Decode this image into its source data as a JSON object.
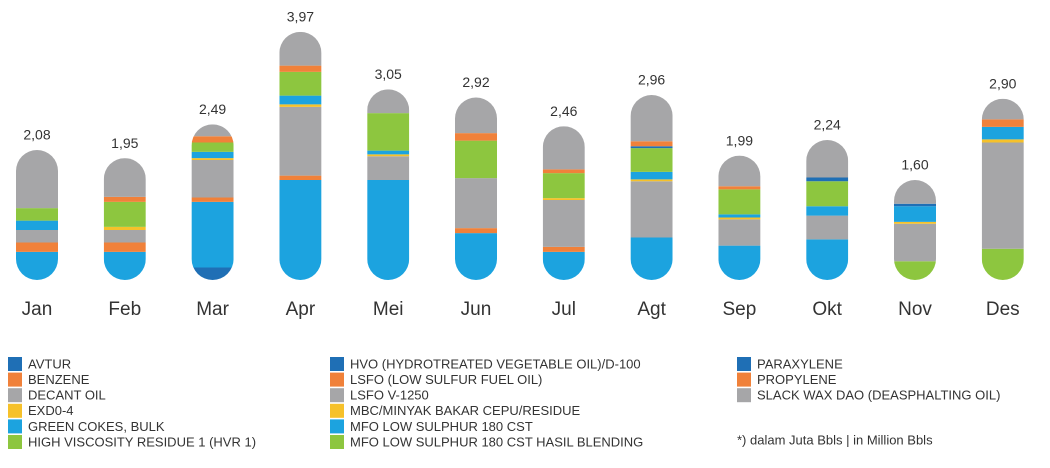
{
  "chart_data": {
    "type": "stacked_bar",
    "categories": [
      "Jan",
      "Feb",
      "Mar",
      "Apr",
      "Mei",
      "Jun",
      "Jul",
      "Agt",
      "Sep",
      "Okt",
      "Nov",
      "Des"
    ],
    "totals": [
      2.08,
      1.95,
      2.49,
      3.97,
      3.05,
      2.92,
      2.46,
      2.96,
      1.99,
      2.24,
      1.6,
      2.9
    ],
    "total_labels": [
      "2,08",
      "1,95",
      "2,49",
      "3,97",
      "3,05",
      "2,92",
      "2,46",
      "2,96",
      "1,99",
      "2,24",
      "1,60",
      "2,90"
    ],
    "series": [
      {
        "name": "AVTUR",
        "color": "#1f6fb5",
        "values": [
          0,
          0,
          0.2,
          0,
          0,
          0,
          0,
          0,
          0,
          0,
          0,
          0
        ]
      },
      {
        "name": "BENZENE",
        "color": "#f0813a",
        "values": [
          0,
          0,
          0,
          0,
          0,
          0,
          0,
          0,
          0,
          0,
          0,
          0
        ]
      },
      {
        "name": "DECANT OIL",
        "color": "#a6a6a8",
        "values": [
          0,
          0,
          0,
          0,
          0,
          0,
          0,
          0,
          0,
          0,
          0,
          0
        ]
      },
      {
        "name": "EXD0-4",
        "color": "#f6c12a",
        "values": [
          0,
          0,
          0,
          0,
          0,
          0,
          0,
          0,
          0,
          0,
          0,
          0
        ]
      },
      {
        "name": "GREEN COKES, BULK",
        "color": "#1ca3df",
        "values": [
          0.45,
          0.45,
          1.05,
          1.6,
          1.6,
          0.75,
          0.45,
          0.68,
          0.55,
          0.65,
          0,
          0
        ]
      },
      {
        "name": "HIGH VISCOSITY RESIDUE 1 (HVR 1)",
        "color": "#8dc63f",
        "values": [
          0,
          0,
          0,
          0,
          0,
          0,
          0,
          0,
          0,
          0,
          0.3,
          0.5
        ]
      },
      {
        "name": "HVO (HYDROTREATED VEGETABLE OIL)/D-100",
        "color": "#1f6fb5",
        "values": [
          0,
          0,
          0,
          0,
          0,
          0,
          0,
          0,
          0,
          0,
          0,
          0
        ]
      },
      {
        "name": "LSFO (LOW SULFUR FUEL OIL)",
        "color": "#f0813a",
        "values": [
          0.15,
          0.15,
          0.07,
          0.07,
          0,
          0.08,
          0.08,
          0,
          0,
          0,
          0,
          0
        ]
      },
      {
        "name": "LSFO V-1250",
        "color": "#a6a6a8",
        "values": [
          0.2,
          0.2,
          0.6,
          1.1,
          0.38,
          0.8,
          0.75,
          0.9,
          0.42,
          0.38,
          0.6,
          1.7
        ]
      },
      {
        "name": "MBC/MINYAK BAKAR CEPU/RESIDUE",
        "color": "#f6c12a",
        "values": [
          0,
          0.05,
          0.03,
          0.04,
          0.03,
          0,
          0.03,
          0.03,
          0.03,
          0,
          0.03,
          0.05
        ]
      },
      {
        "name": "MFO LOW SULPHUR 180 CST",
        "color": "#1ca3df",
        "values": [
          0.15,
          0,
          0.1,
          0.14,
          0.06,
          0,
          0,
          0.12,
          0.05,
          0.15,
          0.25,
          0.2
        ]
      },
      {
        "name": "MFO LOW SULPHUR 180 CST HASIL BLENDING",
        "color": "#8dc63f",
        "values": [
          0.2,
          0.4,
          0.15,
          0.38,
          0.6,
          0.6,
          0.4,
          0.38,
          0.4,
          0.4,
          0,
          0
        ]
      },
      {
        "name": "PARAXYLENE",
        "color": "#1f6fb5",
        "values": [
          0,
          0,
          0,
          0,
          0,
          0,
          0,
          0.03,
          0,
          0.06,
          0.04,
          0
        ]
      },
      {
        "name": "PROPYLENE",
        "color": "#f0813a",
        "values": [
          0,
          0.08,
          0.1,
          0.1,
          0,
          0.12,
          0.06,
          0.08,
          0.05,
          0,
          0,
          0.12
        ]
      },
      {
        "name": "SLACK WAX DAO (DEASPHALTING OIL)",
        "color": "#a6a6a8",
        "values": [
          0.93,
          0.62,
          0.19,
          0.54,
          0.38,
          0.57,
          0.69,
          0.74,
          0.49,
          0.6,
          0.38,
          0.33
        ]
      }
    ],
    "note": "*)  dalam Juta Bbls | in Million Bbls"
  }
}
